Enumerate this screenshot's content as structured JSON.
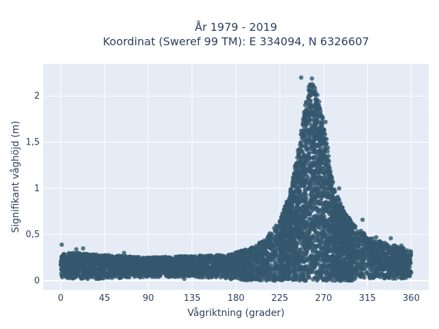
{
  "chart_data": {
    "type": "scatter",
    "title": "År 1979 - 2019",
    "subtitle": "Koordinat (Sweref 99 TM): E 334094, N 6326607",
    "xlabel": "Vågriktning (grader)",
    "ylabel": "Signifikant våghöjd (m)",
    "xlim": [
      -18,
      378
    ],
    "ylim": [
      -0.1,
      2.35
    ],
    "xticks": [
      0,
      45,
      90,
      135,
      180,
      225,
      270,
      315,
      360
    ],
    "xtick_labels": [
      "0",
      "45",
      "90",
      "135",
      "180",
      "225",
      "270",
      "315",
      "360"
    ],
    "yticks": [
      0,
      0.5,
      1,
      1.5,
      2
    ],
    "ytick_labels": [
      "0",
      "0,5",
      "1",
      "1,5",
      "2"
    ],
    "grid": true,
    "marker_color": "#34586e",
    "background_color": "#e5ecf6",
    "envelope": {
      "x": [
        0,
        20,
        45,
        90,
        135,
        170,
        195,
        210,
        225,
        235,
        242,
        248,
        252,
        256,
        260,
        264,
        268,
        272,
        276,
        280,
        285,
        290,
        300,
        315,
        330,
        345,
        360
      ],
      "upper": [
        0.3,
        0.3,
        0.28,
        0.25,
        0.27,
        0.28,
        0.35,
        0.45,
        0.65,
        0.95,
        1.3,
        1.7,
        2.0,
        2.18,
        2.12,
        2.0,
        1.85,
        1.65,
        1.3,
        1.05,
        0.9,
        0.78,
        0.62,
        0.48,
        0.42,
        0.38,
        0.32
      ],
      "lower": [
        0.03,
        0.02,
        0.02,
        0.04,
        0.04,
        0.02,
        0.0,
        0.0,
        0.0,
        0.0,
        0.0,
        0.0,
        0.0,
        0.0,
        0.0,
        0.0,
        0.0,
        0.0,
        0.0,
        0.0,
        0.0,
        0.0,
        0.02,
        0.02,
        0.02,
        0.02,
        0.03
      ]
    },
    "outliers": [
      {
        "x": 1,
        "y": 0.39
      },
      {
        "x": 16,
        "y": 0.34
      },
      {
        "x": 23,
        "y": 0.35
      },
      {
        "x": 65,
        "y": 0.3
      },
      {
        "x": 127,
        "y": 0.02
      },
      {
        "x": 247,
        "y": 2.2
      },
      {
        "x": 258,
        "y": 2.19
      },
      {
        "x": 272,
        "y": 1.72
      },
      {
        "x": 286,
        "y": 1.0
      },
      {
        "x": 310,
        "y": 0.66
      },
      {
        "x": 324,
        "y": 0.47
      },
      {
        "x": 339,
        "y": 0.46
      },
      {
        "x": 350,
        "y": 0.38
      }
    ]
  }
}
